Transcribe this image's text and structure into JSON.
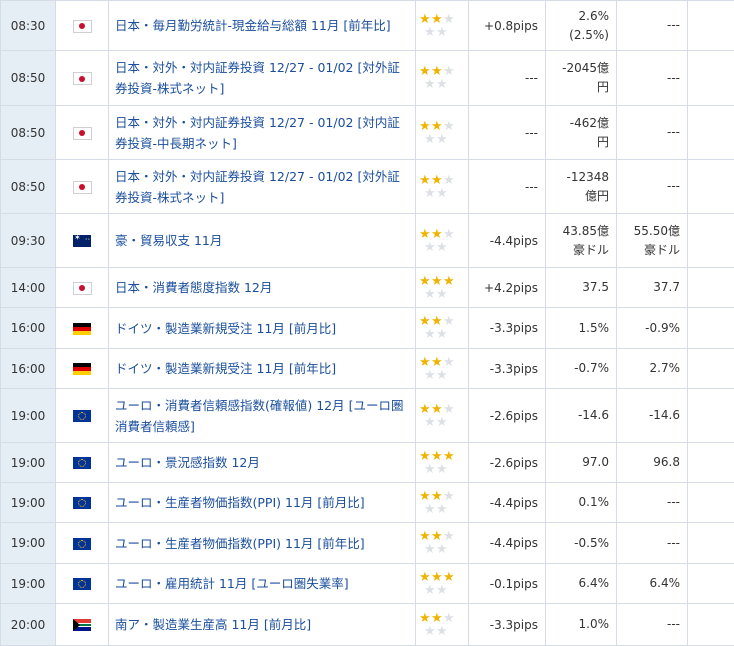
{
  "colors": {
    "time_bg": "#e5edf5",
    "link": "#1a4e9c",
    "star_on": "#f0b400",
    "star_off": "#dde0e5",
    "grid": "#d5dce6"
  },
  "rows": [
    {
      "time": "08:30",
      "flag": "jp-flag-icon",
      "name": "日本・毎月勤労統計-現金給与総額 11月 [前年比]",
      "stars": 2,
      "pips": "+0.8pips",
      "actual": "2.6%",
      "actual2": "(2.5%)",
      "forecast": "---",
      "forecast2": "",
      "prev": "---",
      "h": 50
    },
    {
      "time": "08:50",
      "flag": "jp-flag-icon",
      "name": "日本・対外・対内証券投資 12/27 - 01/02 [対外証券投資-株式ネット]",
      "stars": 2,
      "pips": "---",
      "actual": "-2045億",
      "actual2": "円",
      "forecast": "---",
      "forecast2": "",
      "prev": "---",
      "h": 55
    },
    {
      "time": "08:50",
      "flag": "jp-flag-icon",
      "name": "日本・対外・対内証券投資 12/27 - 01/02 [対内証券投資-中長期ネット]",
      "stars": 2,
      "pips": "---",
      "actual": "-462億",
      "actual2": "円",
      "forecast": "---",
      "forecast2": "",
      "prev": "---",
      "h": 54
    },
    {
      "time": "08:50",
      "flag": "jp-flag-icon",
      "name": "日本・対外・対内証券投資 12/27 - 01/02 [対外証券投資-株式ネット]",
      "stars": 2,
      "pips": "---",
      "actual": "-12348",
      "actual2": "億円",
      "forecast": "---",
      "forecast2": "",
      "prev": "---",
      "h": 54
    },
    {
      "time": "09:30",
      "flag": "au-flag-icon",
      "name": "豪・貿易収支 11月",
      "stars": 2,
      "pips": "-4.4pips",
      "actual": "43.85億",
      "actual2": "豪ドル",
      "forecast": "55.50億",
      "forecast2": "豪ドル",
      "prev": "---",
      "h": 54
    },
    {
      "time": "14:00",
      "flag": "jp-flag-icon",
      "name": "日本・消費者態度指数 12月",
      "stars": 3,
      "pips": "+4.2pips",
      "actual": "37.5",
      "actual2": "",
      "forecast": "37.7",
      "forecast2": "",
      "prev": "---",
      "h": 40
    },
    {
      "time": "16:00",
      "flag": "de-flag-icon",
      "name": "ドイツ・製造業新規受注 11月 [前月比]",
      "stars": 2,
      "pips": "-3.3pips",
      "actual": "1.5%",
      "actual2": "",
      "forecast": "-0.9%",
      "forecast2": "",
      "prev": "---",
      "h": 41
    },
    {
      "time": "16:00",
      "flag": "de-flag-icon",
      "name": "ドイツ・製造業新規受注 11月 [前年比]",
      "stars": 2,
      "pips": "-3.3pips",
      "actual": "-0.7%",
      "actual2": "",
      "forecast": "2.7%",
      "forecast2": "",
      "prev": "---",
      "h": 40
    },
    {
      "time": "19:00",
      "flag": "eu-flag-icon",
      "name": "ユーロ・消費者信頼感指数(確報値) 12月 [ユーロ圏消費者信頼感]",
      "stars": 2,
      "pips": "-2.6pips",
      "actual": "-14.6",
      "actual2": "",
      "forecast": "-14.6",
      "forecast2": "",
      "prev": "---",
      "h": 54
    },
    {
      "time": "19:00",
      "flag": "eu-flag-icon",
      "name": "ユーロ・景況感指数 12月",
      "stars": 3,
      "pips": "-2.6pips",
      "actual": "97.0",
      "actual2": "",
      "forecast": "96.8",
      "forecast2": "",
      "prev": "---",
      "h": 40
    },
    {
      "time": "19:00",
      "flag": "eu-flag-icon",
      "name": "ユーロ・生産者物価指数(PPI) 11月 [前月比]",
      "stars": 2,
      "pips": "-4.4pips",
      "actual": "0.1%",
      "actual2": "",
      "forecast": "---",
      "forecast2": "",
      "prev": "---",
      "h": 40
    },
    {
      "time": "19:00",
      "flag": "eu-flag-icon",
      "name": "ユーロ・生産者物価指数(PPI) 11月 [前年比]",
      "stars": 2,
      "pips": "-4.4pips",
      "actual": "-0.5%",
      "actual2": "",
      "forecast": "---",
      "forecast2": "",
      "prev": "---",
      "h": 41
    },
    {
      "time": "19:00",
      "flag": "eu-flag-icon",
      "name": "ユーロ・雇用統計 11月 [ユーロ圏失業率]",
      "stars": 3,
      "pips": "-0.1pips",
      "actual": "6.4%",
      "actual2": "",
      "forecast": "6.4%",
      "forecast2": "",
      "prev": "---",
      "h": 40
    },
    {
      "time": "20:00",
      "flag": "za-flag-icon",
      "name": "南ア・製造業生産高 11月 [前月比]",
      "stars": 2,
      "pips": "-3.3pips",
      "actual": "1.0%",
      "actual2": "",
      "forecast": "---",
      "forecast2": "",
      "prev": "---",
      "h": 42
    }
  ]
}
